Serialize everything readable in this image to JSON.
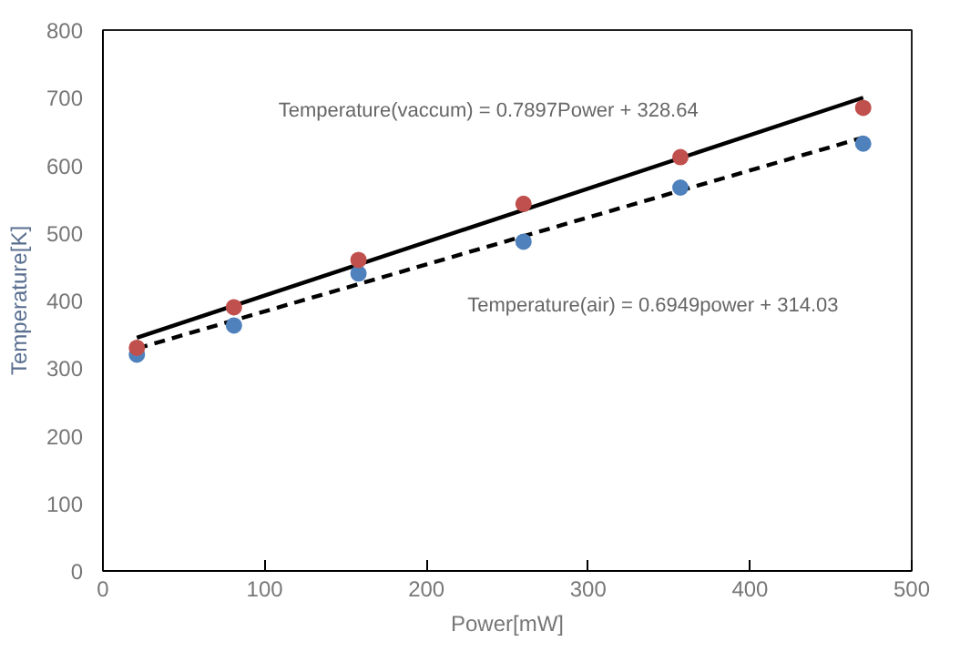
{
  "chart_data": {
    "type": "scatter",
    "xlabel": "Power[mW]",
    "ylabel": "Temperature[K]",
    "xlim": [
      0,
      500
    ],
    "ylim": [
      0,
      800
    ],
    "xticks": [
      0,
      100,
      200,
      300,
      400,
      500
    ],
    "yticks": [
      0,
      100,
      200,
      300,
      400,
      500,
      600,
      700,
      800
    ],
    "grid": false,
    "series": [
      {
        "color": "#c0504d",
        "marker": "circle",
        "x": [
          21,
          81,
          158,
          260,
          357,
          470
        ],
        "values": [
          330,
          390,
          460,
          543,
          612,
          685
        ]
      },
      {
        "color": "#4f81bd",
        "marker": "circle",
        "x": [
          21,
          81,
          158,
          260,
          357,
          470
        ],
        "values": [
          320,
          363,
          440,
          487,
          567,
          632
        ]
      },
      {
        "type": "line",
        "color": "#000000",
        "line_style": "solid",
        "x": [
          21,
          470
        ],
        "values": [
          345,
          700
        ]
      },
      {
        "type": "line",
        "color": "#000000",
        "line_style": "dashed",
        "x": [
          21,
          470
        ],
        "values": [
          329,
          641
        ]
      }
    ],
    "annotations": [
      "Temperature(vaccum) = 0.7897Power  + 328.64",
      "Temperature(air) = 0.6949power + 314.03"
    ]
  }
}
